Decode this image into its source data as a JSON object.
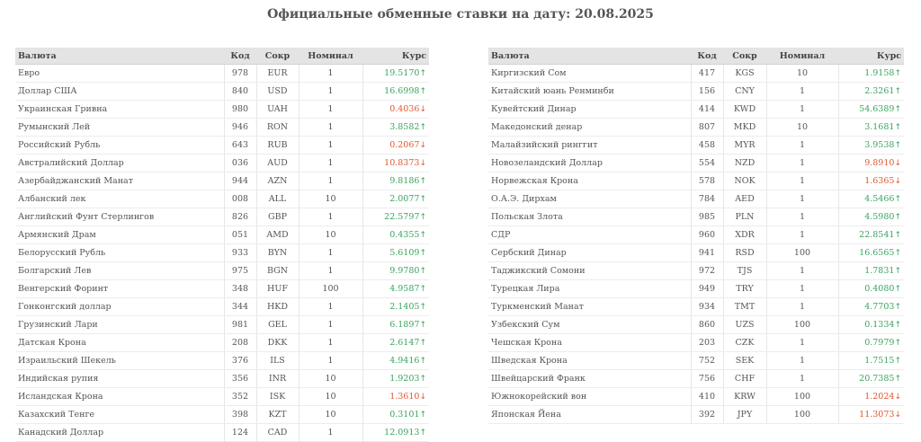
{
  "title": "Официальные обменные ставки на дату: 20.08.2025",
  "headers": {
    "currency": "Валюта",
    "code": "Код",
    "abbr": "Сокр",
    "nominal": "Номинал",
    "rate": "Курс"
  },
  "arrows": {
    "up": "↑",
    "down": "↓"
  },
  "left_rows": [
    {
      "name": "Евро",
      "code": "978",
      "abbr": "EUR",
      "nominal": "1",
      "rate": "19.5170",
      "dir": "up"
    },
    {
      "name": "Доллар США",
      "code": "840",
      "abbr": "USD",
      "nominal": "1",
      "rate": "16.6998",
      "dir": "up"
    },
    {
      "name": "Украинская Гривна",
      "code": "980",
      "abbr": "UAH",
      "nominal": "1",
      "rate": "0.4036",
      "dir": "down"
    },
    {
      "name": "Румынский Лей",
      "code": "946",
      "abbr": "RON",
      "nominal": "1",
      "rate": "3.8582",
      "dir": "up"
    },
    {
      "name": "Российский Рубль",
      "code": "643",
      "abbr": "RUB",
      "nominal": "1",
      "rate": "0.2067",
      "dir": "down"
    },
    {
      "name": "Австралийский Доллар",
      "code": "036",
      "abbr": "AUD",
      "nominal": "1",
      "rate": "10.8373",
      "dir": "down"
    },
    {
      "name": "Азербайджанский Манат",
      "code": "944",
      "abbr": "AZN",
      "nominal": "1",
      "rate": "9.8186",
      "dir": "up"
    },
    {
      "name": "Албанский лек",
      "code": "008",
      "abbr": "ALL",
      "nominal": "10",
      "rate": "2.0077",
      "dir": "up"
    },
    {
      "name": "Английский Фунт Стерлингов",
      "code": "826",
      "abbr": "GBP",
      "nominal": "1",
      "rate": "22.5797",
      "dir": "up"
    },
    {
      "name": "Армянский Драм",
      "code": "051",
      "abbr": "AMD",
      "nominal": "10",
      "rate": "0.4355",
      "dir": "up"
    },
    {
      "name": "Белорусский Рубль",
      "code": "933",
      "abbr": "BYN",
      "nominal": "1",
      "rate": "5.6109",
      "dir": "up"
    },
    {
      "name": "Болгарский Лев",
      "code": "975",
      "abbr": "BGN",
      "nominal": "1",
      "rate": "9.9780",
      "dir": "up"
    },
    {
      "name": "Венгерский Форинт",
      "code": "348",
      "abbr": "HUF",
      "nominal": "100",
      "rate": "4.9587",
      "dir": "up"
    },
    {
      "name": "Гонконгский доллар",
      "code": "344",
      "abbr": "HKD",
      "nominal": "1",
      "rate": "2.1405",
      "dir": "up"
    },
    {
      "name": "Грузинский Лари",
      "code": "981",
      "abbr": "GEL",
      "nominal": "1",
      "rate": "6.1897",
      "dir": "up"
    },
    {
      "name": "Датская Крона",
      "code": "208",
      "abbr": "DKK",
      "nominal": "1",
      "rate": "2.6147",
      "dir": "up"
    },
    {
      "name": "Израильский Шекель",
      "code": "376",
      "abbr": "ILS",
      "nominal": "1",
      "rate": "4.9416",
      "dir": "up"
    },
    {
      "name": "Индийская рупия",
      "code": "356",
      "abbr": "INR",
      "nominal": "10",
      "rate": "1.9203",
      "dir": "up"
    },
    {
      "name": "Исландская Крона",
      "code": "352",
      "abbr": "ISK",
      "nominal": "10",
      "rate": "1.3610",
      "dir": "down"
    },
    {
      "name": "Казахский Тенге",
      "code": "398",
      "abbr": "KZT",
      "nominal": "10",
      "rate": "0.3101",
      "dir": "up"
    },
    {
      "name": "Канадский Доллар",
      "code": "124",
      "abbr": "CAD",
      "nominal": "1",
      "rate": "12.0913",
      "dir": "up"
    }
  ],
  "right_rows": [
    {
      "name": "Киргизский Сом",
      "code": "417",
      "abbr": "KGS",
      "nominal": "10",
      "rate": "1.9158",
      "dir": "up"
    },
    {
      "name": "Китайский юань Ренминби",
      "code": "156",
      "abbr": "CNY",
      "nominal": "1",
      "rate": "2.3261",
      "dir": "up"
    },
    {
      "name": "Кувейтский Динар",
      "code": "414",
      "abbr": "KWD",
      "nominal": "1",
      "rate": "54.6389",
      "dir": "up"
    },
    {
      "name": "Македонский денар",
      "code": "807",
      "abbr": "MKD",
      "nominal": "10",
      "rate": "3.1681",
      "dir": "up"
    },
    {
      "name": "Малайзийский ринггит",
      "code": "458",
      "abbr": "MYR",
      "nominal": "1",
      "rate": "3.9538",
      "dir": "up"
    },
    {
      "name": "Новозеландский Доллар",
      "code": "554",
      "abbr": "NZD",
      "nominal": "1",
      "rate": "9.8910",
      "dir": "down"
    },
    {
      "name": "Норвежская Крона",
      "code": "578",
      "abbr": "NOK",
      "nominal": "1",
      "rate": "1.6365",
      "dir": "down"
    },
    {
      "name": "О.А.Э. Дирхам",
      "code": "784",
      "abbr": "AED",
      "nominal": "1",
      "rate": "4.5466",
      "dir": "up"
    },
    {
      "name": "Польская Злота",
      "code": "985",
      "abbr": "PLN",
      "nominal": "1",
      "rate": "4.5980",
      "dir": "up"
    },
    {
      "name": "СДР",
      "code": "960",
      "abbr": "XDR",
      "nominal": "1",
      "rate": "22.8541",
      "dir": "up"
    },
    {
      "name": "Сербский Динар",
      "code": "941",
      "abbr": "RSD",
      "nominal": "100",
      "rate": "16.6565",
      "dir": "up"
    },
    {
      "name": "Таджикский Сомони",
      "code": "972",
      "abbr": "TJS",
      "nominal": "1",
      "rate": "1.7831",
      "dir": "up"
    },
    {
      "name": "Турецкая Лира",
      "code": "949",
      "abbr": "TRY",
      "nominal": "1",
      "rate": "0.4080",
      "dir": "up"
    },
    {
      "name": "Туркменский Манат",
      "code": "934",
      "abbr": "TMT",
      "nominal": "1",
      "rate": "4.7703",
      "dir": "up"
    },
    {
      "name": "Узбекский Сум",
      "code": "860",
      "abbr": "UZS",
      "nominal": "100",
      "rate": "0.1334",
      "dir": "up"
    },
    {
      "name": "Чешская Крона",
      "code": "203",
      "abbr": "CZK",
      "nominal": "1",
      "rate": "0.7979",
      "dir": "up"
    },
    {
      "name": "Шведская Крона",
      "code": "752",
      "abbr": "SEK",
      "nominal": "1",
      "rate": "1.7515",
      "dir": "up"
    },
    {
      "name": "Швейцарский Франк",
      "code": "756",
      "abbr": "CHF",
      "nominal": "1",
      "rate": "20.7385",
      "dir": "up"
    },
    {
      "name": "Южнокорейский вон",
      "code": "410",
      "abbr": "KRW",
      "nominal": "100",
      "rate": "1.2024",
      "dir": "down"
    },
    {
      "name": "Японская Йена",
      "code": "392",
      "abbr": "JPY",
      "nominal": "100",
      "rate": "11.3073",
      "dir": "down"
    }
  ],
  "colors": {
    "up": "#3aa35f",
    "down": "#e0572f",
    "header_bg": "#e4e4e4"
  }
}
